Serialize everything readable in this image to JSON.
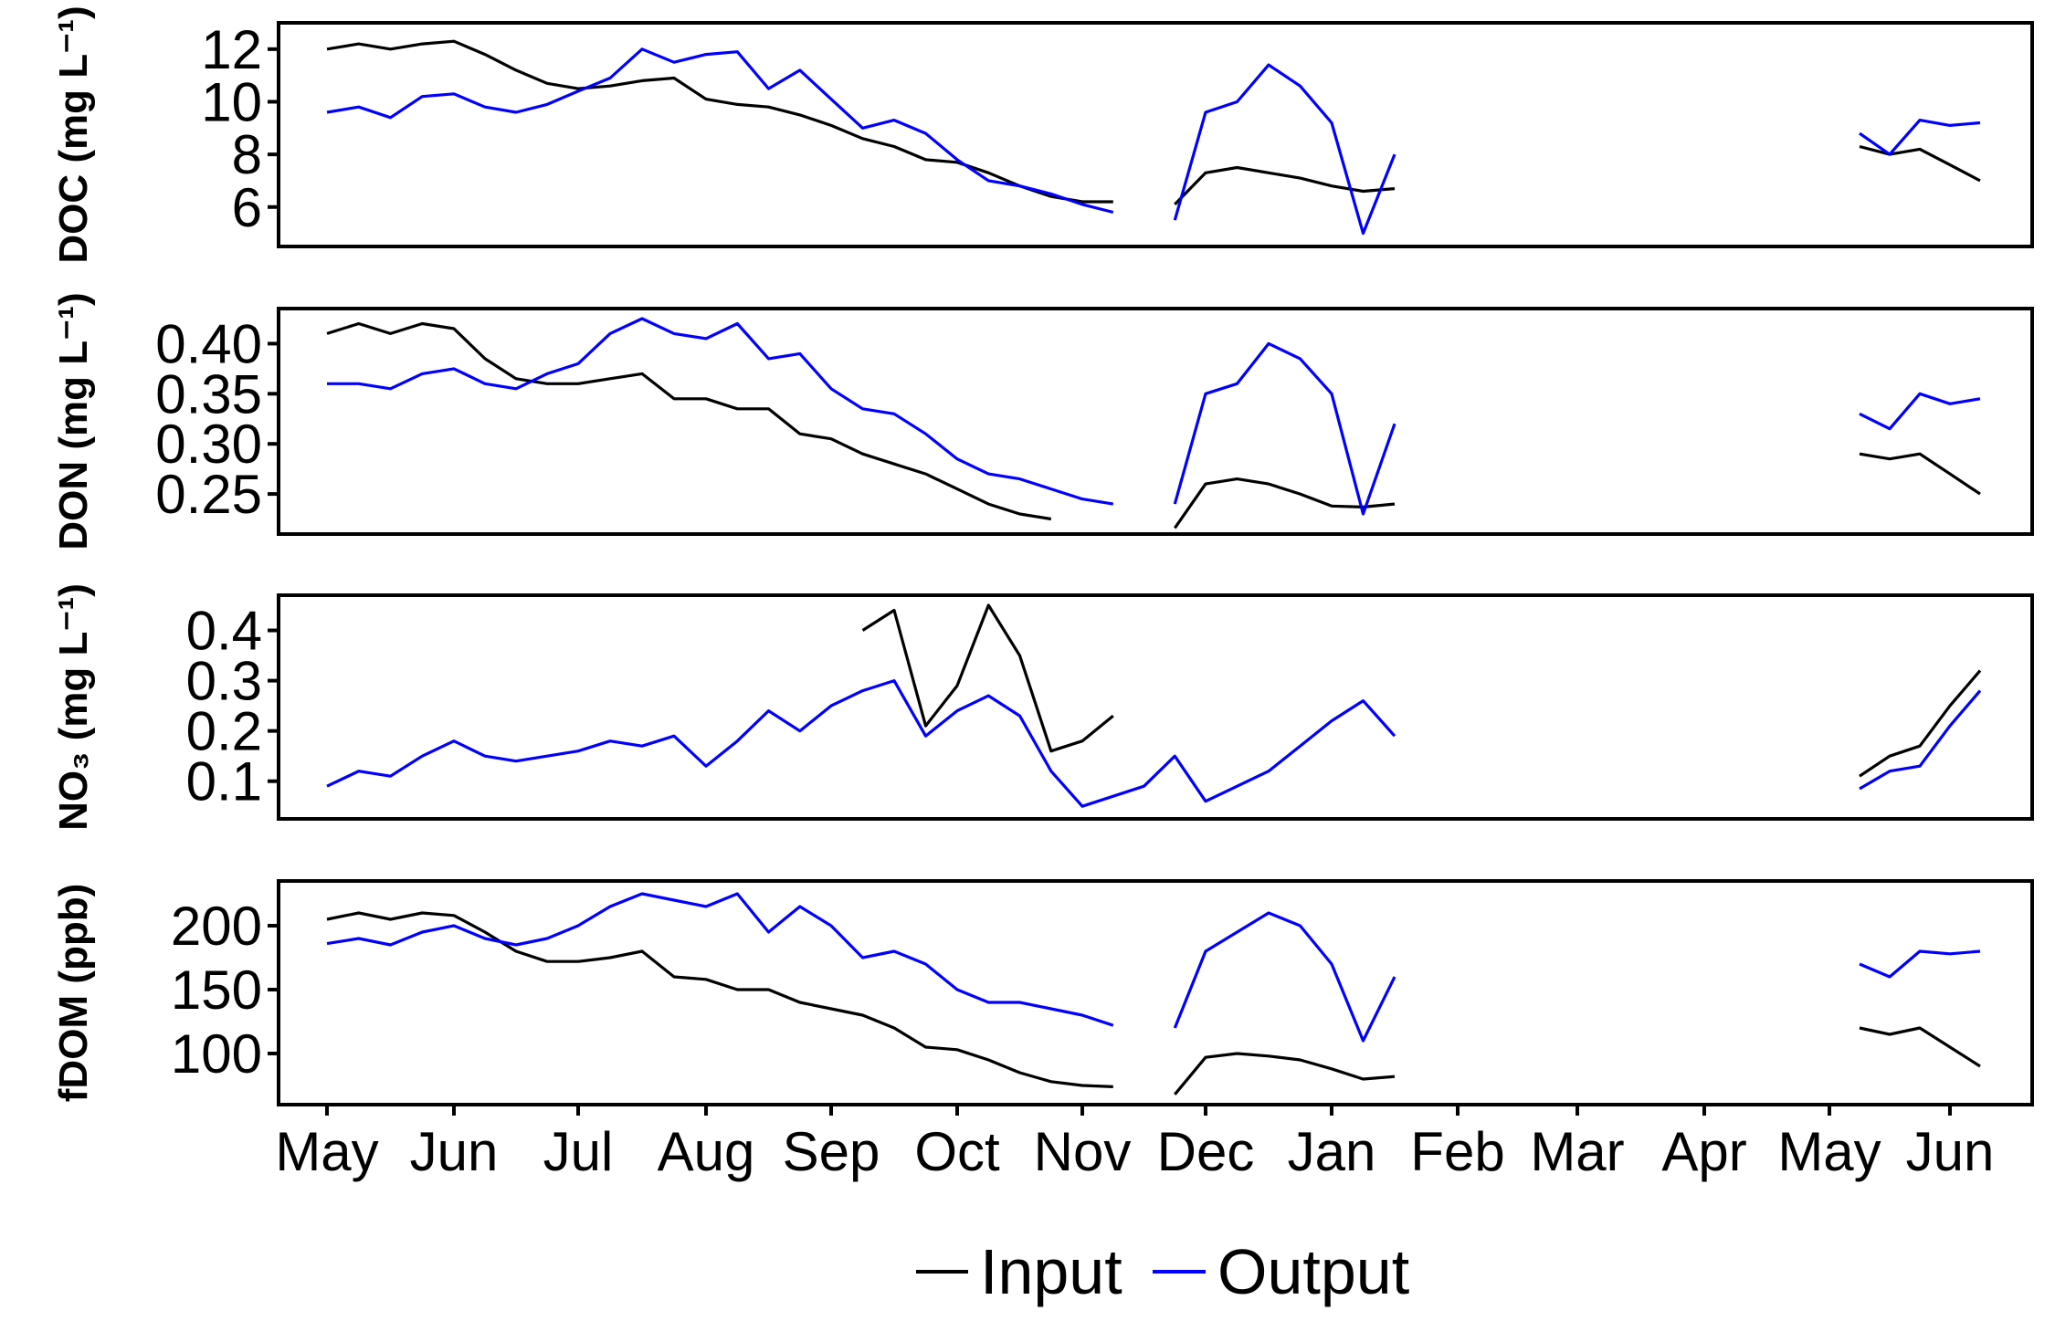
{
  "legend": {
    "items": [
      {
        "label": "Input",
        "color": "#000000"
      },
      {
        "label": "Output",
        "color": "#0000ff"
      }
    ]
  },
  "x_axis": {
    "tick_labels": [
      "May",
      "Jun",
      "Jul",
      "Aug",
      "Sep",
      "Oct",
      "Nov",
      "Dec",
      "Jan",
      "Feb",
      "Mar",
      "Apr",
      "May",
      "Jun"
    ]
  },
  "chart_data": [
    {
      "type": "line",
      "ylabel": "DOC (mg L⁻¹)",
      "ylim": [
        4.5,
        13
      ],
      "yticks": [
        6,
        8,
        10,
        12
      ],
      "x": [
        0,
        0.25,
        0.5,
        0.75,
        1,
        1.25,
        1.5,
        1.75,
        2,
        2.25,
        2.5,
        2.75,
        3,
        3.25,
        3.5,
        3.75,
        4,
        4.25,
        4.5,
        4.75,
        5,
        5.25,
        5.5,
        5.75,
        6,
        6.25,
        6.5,
        6.75,
        7,
        7.25,
        7.5,
        7.75,
        8,
        8.25,
        8.5,
        8.75,
        9,
        9.25,
        9.5,
        9.75,
        10,
        10.25,
        10.5,
        10.75,
        11,
        11.25,
        11.5,
        11.75,
        12,
        12.25,
        12.5,
        12.75,
        13,
        13.25
      ],
      "series": [
        {
          "name": "Input",
          "color": "#000000",
          "values": [
            12.0,
            12.2,
            12.0,
            12.2,
            12.3,
            11.8,
            11.2,
            10.7,
            10.5,
            10.6,
            10.8,
            10.9,
            10.1,
            9.9,
            9.8,
            9.5,
            9.1,
            8.6,
            8.3,
            7.8,
            7.7,
            7.3,
            6.8,
            6.4,
            6.2,
            6.2,
            null,
            6.1,
            7.3,
            7.5,
            7.3,
            7.1,
            6.8,
            6.6,
            6.7,
            null,
            null,
            null,
            null,
            null,
            null,
            null,
            null,
            null,
            null,
            null,
            null,
            null,
            null,
            8.3,
            8.0,
            8.2,
            7.6,
            7.0
          ]
        },
        {
          "name": "Output",
          "color": "#0000ff",
          "values": [
            9.6,
            9.8,
            9.4,
            10.2,
            10.3,
            9.8,
            9.6,
            9.9,
            10.4,
            10.9,
            12.0,
            11.5,
            11.8,
            11.9,
            10.5,
            11.2,
            10.1,
            9.0,
            9.3,
            8.8,
            7.8,
            7.0,
            6.8,
            6.5,
            6.1,
            5.8,
            null,
            5.5,
            9.6,
            10.0,
            11.4,
            10.6,
            9.2,
            5.0,
            8.0,
            null,
            null,
            null,
            null,
            null,
            null,
            null,
            null,
            null,
            null,
            null,
            null,
            null,
            null,
            8.8,
            8.0,
            9.3,
            9.1,
            9.2
          ]
        }
      ]
    },
    {
      "type": "line",
      "ylabel": "DON (mg L⁻¹)",
      "ylim": [
        0.21,
        0.435
      ],
      "yticks": [
        0.25,
        0.3,
        0.35,
        0.4
      ],
      "x": [
        0,
        0.25,
        0.5,
        0.75,
        1,
        1.25,
        1.5,
        1.75,
        2,
        2.25,
        2.5,
        2.75,
        3,
        3.25,
        3.5,
        3.75,
        4,
        4.25,
        4.5,
        4.75,
        5,
        5.25,
        5.5,
        5.75,
        6,
        6.25,
        6.5,
        6.75,
        7,
        7.25,
        7.5,
        7.75,
        8,
        8.25,
        8.5,
        8.75,
        9,
        9.25,
        9.5,
        9.75,
        10,
        10.25,
        10.5,
        10.75,
        11,
        11.25,
        11.5,
        11.75,
        12,
        12.25,
        12.5,
        12.75,
        13,
        13.25
      ],
      "series": [
        {
          "name": "Input",
          "color": "#000000",
          "values": [
            0.41,
            0.42,
            0.41,
            0.42,
            0.415,
            0.385,
            0.365,
            0.36,
            0.36,
            0.365,
            0.37,
            0.345,
            0.345,
            0.335,
            0.335,
            0.31,
            0.305,
            0.29,
            0.28,
            0.27,
            0.255,
            0.24,
            0.23,
            0.225,
            null,
            null,
            null,
            0.216,
            0.26,
            0.265,
            0.26,
            0.25,
            0.238,
            0.237,
            0.24,
            null,
            null,
            null,
            null,
            null,
            null,
            null,
            null,
            null,
            null,
            null,
            null,
            null,
            null,
            0.29,
            0.285,
            0.29,
            0.27,
            0.25
          ]
        },
        {
          "name": "Output",
          "color": "#0000ff",
          "values": [
            0.36,
            0.36,
            0.355,
            0.37,
            0.375,
            0.36,
            0.355,
            0.37,
            0.38,
            0.41,
            0.425,
            0.41,
            0.405,
            0.42,
            0.385,
            0.39,
            0.355,
            0.335,
            0.33,
            0.31,
            0.285,
            0.27,
            0.265,
            0.255,
            0.245,
            0.24,
            null,
            0.24,
            0.35,
            0.36,
            0.4,
            0.385,
            0.35,
            0.23,
            0.32,
            null,
            null,
            null,
            null,
            null,
            null,
            null,
            null,
            null,
            null,
            null,
            null,
            null,
            null,
            0.33,
            0.315,
            0.35,
            0.34,
            0.345
          ]
        }
      ]
    },
    {
      "type": "line",
      "ylabel": "NO₃ (mg L⁻¹)",
      "ylim": [
        0.025,
        0.47
      ],
      "yticks": [
        0.1,
        0.2,
        0.3,
        0.4
      ],
      "x": [
        0,
        0.25,
        0.5,
        0.75,
        1,
        1.25,
        1.5,
        1.75,
        2,
        2.25,
        2.5,
        2.75,
        3,
        3.25,
        3.5,
        3.75,
        4,
        4.25,
        4.5,
        4.75,
        5,
        5.25,
        5.5,
        5.75,
        6,
        6.25,
        6.5,
        6.75,
        7,
        7.25,
        7.5,
        7.75,
        8,
        8.25,
        8.5,
        8.75,
        9,
        9.25,
        9.5,
        9.75,
        10,
        10.25,
        10.5,
        10.75,
        11,
        11.25,
        11.5,
        11.75,
        12,
        12.25,
        12.5,
        12.75,
        13,
        13.25
      ],
      "series": [
        {
          "name": "Input",
          "color": "#000000",
          "values": [
            null,
            null,
            null,
            null,
            null,
            null,
            null,
            null,
            null,
            null,
            null,
            null,
            null,
            null,
            null,
            null,
            null,
            0.4,
            0.44,
            0.21,
            0.29,
            0.45,
            0.35,
            0.16,
            0.18,
            0.23,
            null,
            null,
            null,
            null,
            null,
            null,
            null,
            null,
            null,
            null,
            null,
            null,
            null,
            null,
            null,
            null,
            null,
            null,
            null,
            null,
            null,
            null,
            null,
            0.11,
            0.15,
            0.17,
            0.25,
            0.32
          ]
        },
        {
          "name": "Output",
          "color": "#0000ff",
          "values": [
            0.09,
            0.12,
            0.11,
            0.15,
            0.18,
            0.15,
            0.14,
            0.15,
            0.16,
            0.18,
            0.17,
            0.19,
            0.13,
            0.18,
            0.24,
            0.2,
            0.25,
            0.28,
            0.3,
            0.19,
            0.24,
            0.27,
            0.23,
            0.12,
            0.05,
            0.07,
            0.09,
            0.15,
            0.06,
            0.09,
            0.12,
            0.17,
            0.22,
            0.26,
            0.19,
            null,
            null,
            null,
            null,
            null,
            null,
            null,
            null,
            null,
            null,
            null,
            null,
            null,
            null,
            0.085,
            0.12,
            0.13,
            0.21,
            0.28
          ]
        }
      ]
    },
    {
      "type": "line",
      "ylabel": "fDOM (ppb)",
      "ylim": [
        60,
        235
      ],
      "yticks": [
        100,
        150,
        200
      ],
      "x": [
        0,
        0.25,
        0.5,
        0.75,
        1,
        1.25,
        1.5,
        1.75,
        2,
        2.25,
        2.5,
        2.75,
        3,
        3.25,
        3.5,
        3.75,
        4,
        4.25,
        4.5,
        4.75,
        5,
        5.25,
        5.5,
        5.75,
        6,
        6.25,
        6.5,
        6.75,
        7,
        7.25,
        7.5,
        7.75,
        8,
        8.25,
        8.5,
        8.75,
        9,
        9.25,
        9.5,
        9.75,
        10,
        10.25,
        10.5,
        10.75,
        11,
        11.25,
        11.5,
        11.75,
        12,
        12.25,
        12.5,
        12.75,
        13,
        13.25
      ],
      "series": [
        {
          "name": "Input",
          "color": "#000000",
          "values": [
            205,
            210,
            205,
            210,
            208,
            195,
            180,
            172,
            172,
            175,
            180,
            160,
            158,
            150,
            150,
            140,
            135,
            130,
            120,
            105,
            103,
            95,
            85,
            78,
            75,
            74,
            null,
            68,
            97,
            100,
            98,
            95,
            88,
            80,
            82,
            null,
            null,
            null,
            null,
            null,
            null,
            null,
            null,
            null,
            null,
            null,
            null,
            null,
            null,
            120,
            115,
            120,
            105,
            90
          ]
        },
        {
          "name": "Output",
          "color": "#0000ff",
          "values": [
            186,
            190,
            185,
            195,
            200,
            190,
            185,
            190,
            200,
            215,
            225,
            220,
            215,
            225,
            195,
            215,
            200,
            175,
            180,
            170,
            150,
            140,
            140,
            135,
            130,
            122,
            null,
            120,
            180,
            195,
            210,
            200,
            170,
            110,
            160,
            null,
            null,
            null,
            null,
            null,
            null,
            null,
            null,
            null,
            null,
            null,
            null,
            null,
            null,
            170,
            160,
            180,
            178,
            180
          ]
        }
      ]
    }
  ]
}
